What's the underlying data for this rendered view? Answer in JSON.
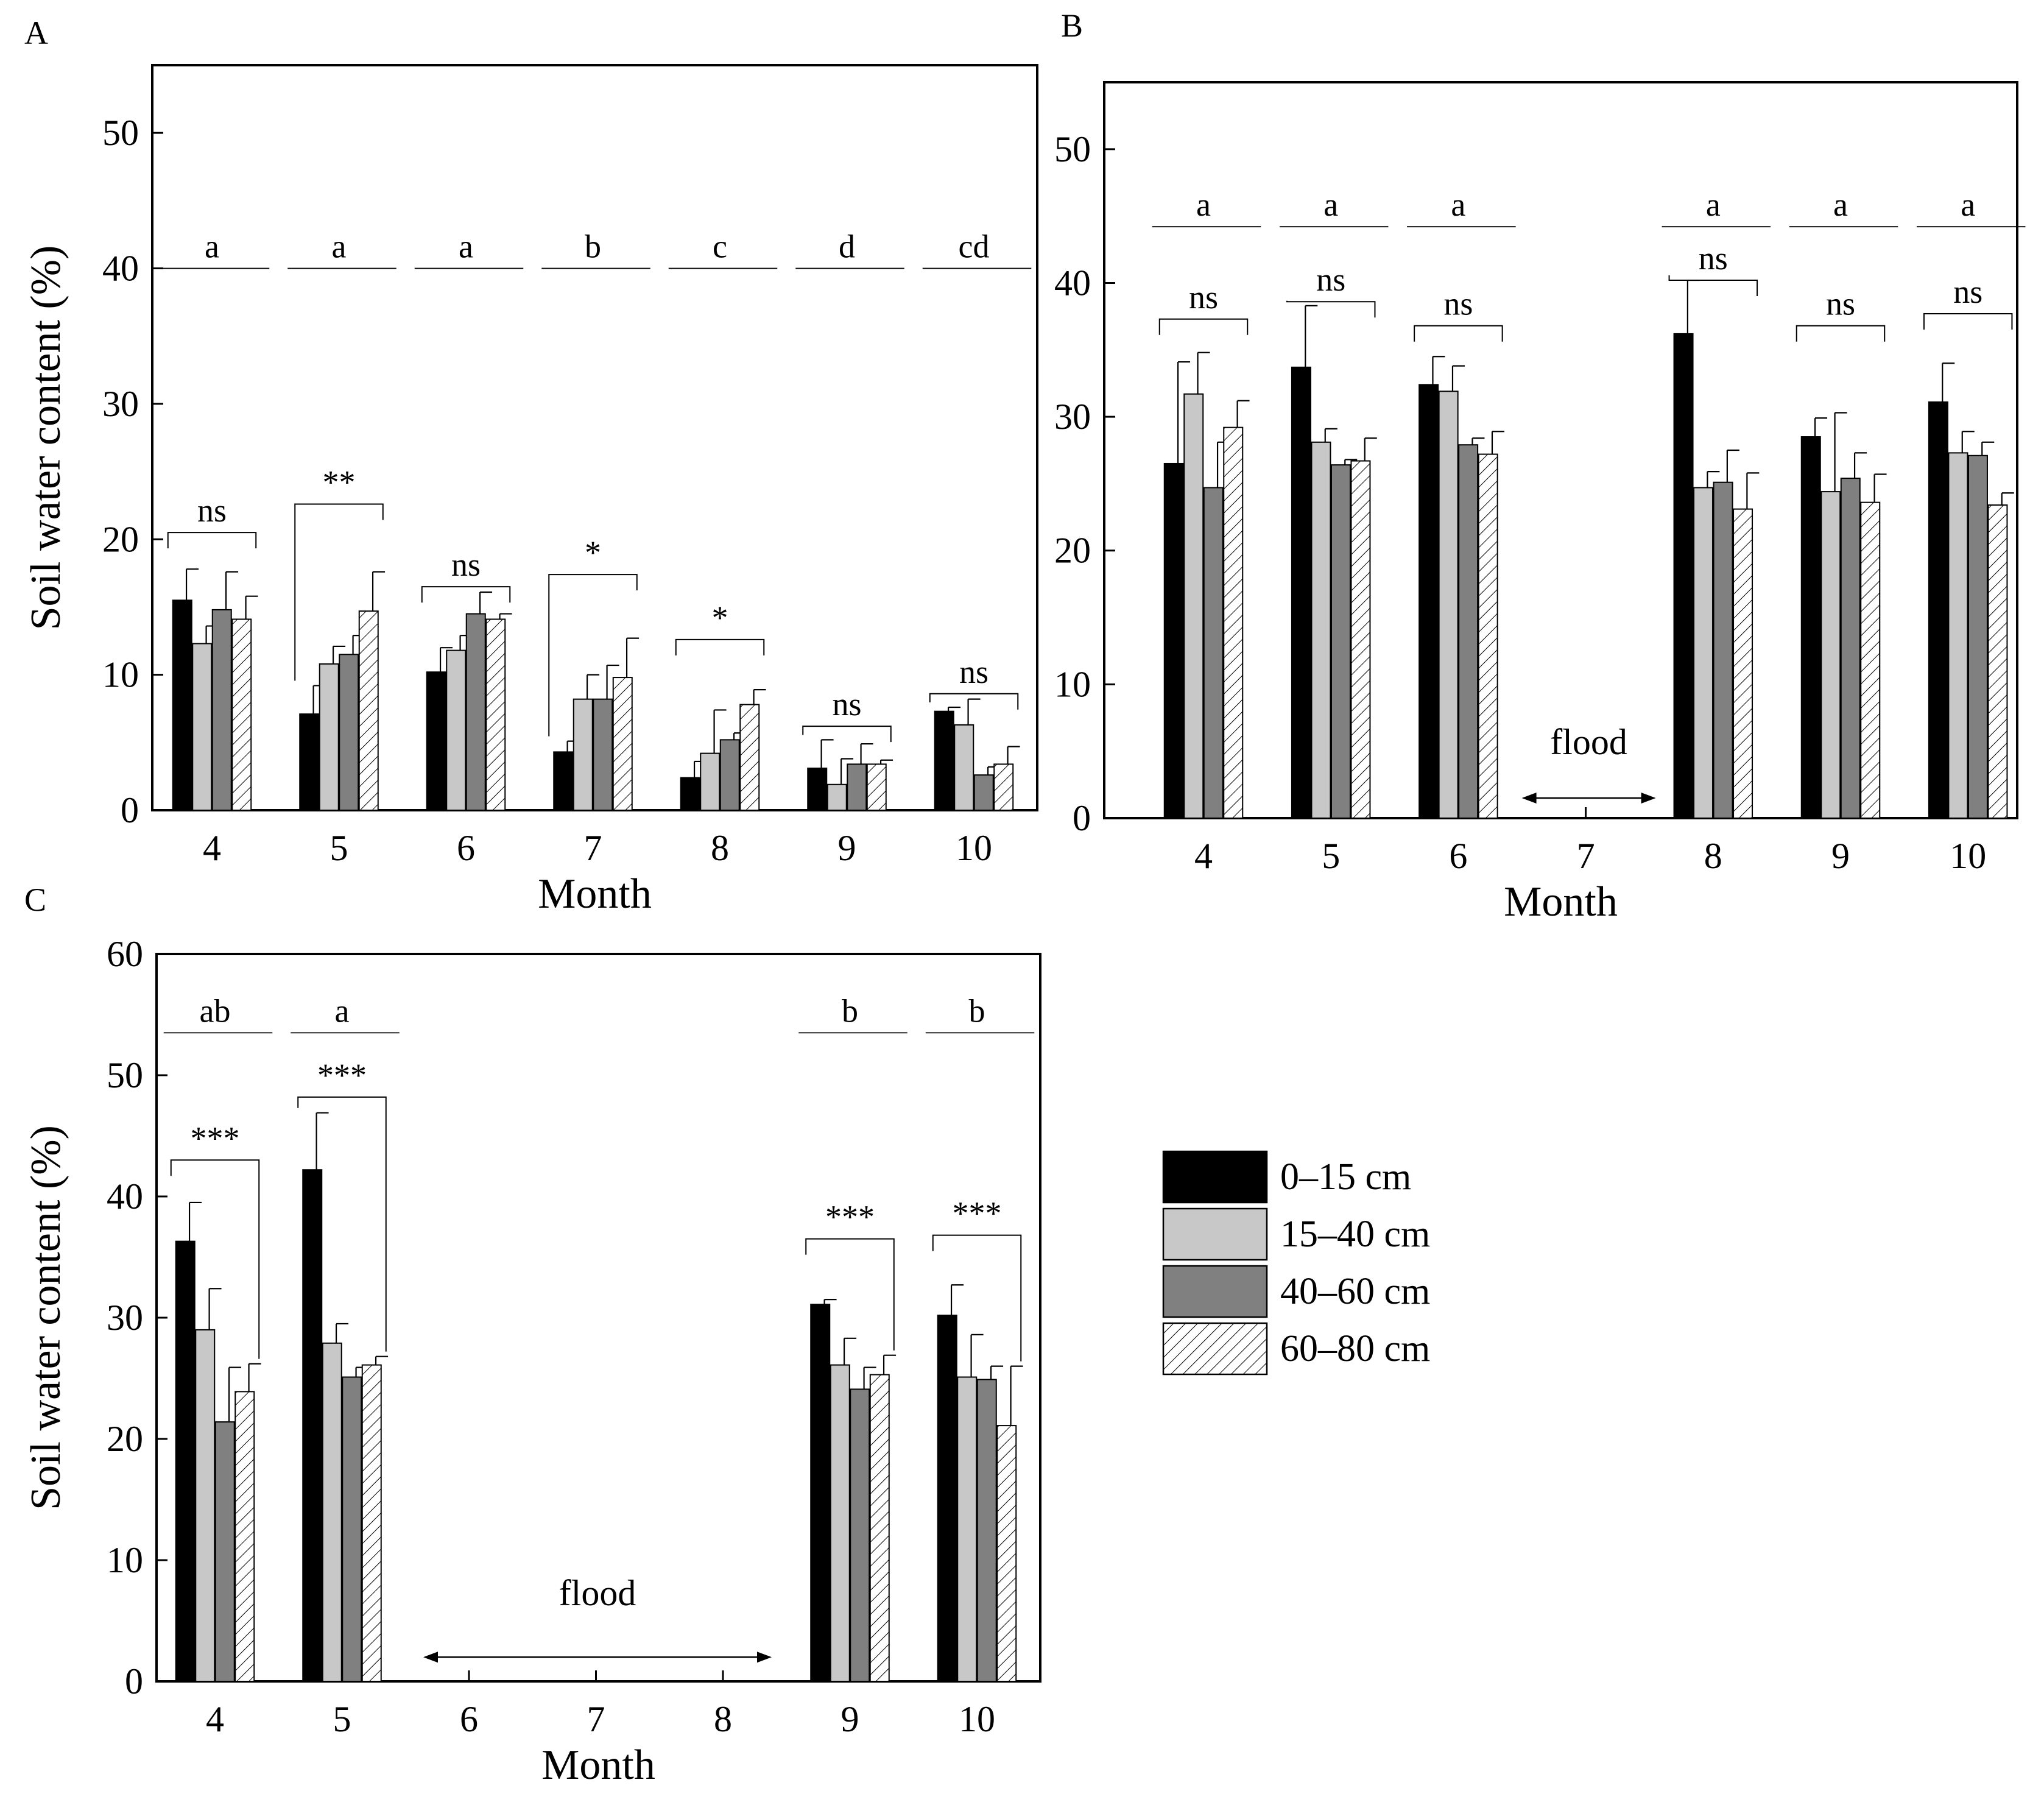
{
  "figure": {
    "legend": {
      "entries": [
        "0–15 cm",
        "15–40 cm",
        "40–60 cm",
        "60–80 cm"
      ],
      "styles": [
        "black",
        "lightgray",
        "darkgray",
        "hatch"
      ]
    },
    "colors": {
      "black": "#000000",
      "lightgray": "#c8c8c8",
      "darkgray": "#808080",
      "hatch": "#ffffff"
    }
  },
  "chart_data": [
    {
      "panel": "A",
      "type": "bar",
      "xlabel": "Month",
      "ylabel": "Soil water content (%)",
      "ylim": [
        0,
        55
      ],
      "yticks": [
        0,
        10,
        20,
        30,
        40,
        50
      ],
      "categories": [
        "4",
        "5",
        "6",
        "7",
        "8",
        "9",
        "10"
      ],
      "series": [
        {
          "name": "0–15 cm",
          "values": [
            15.5,
            7.1,
            10.2,
            4.3,
            2.4,
            3.1,
            7.3
          ],
          "errors": [
            2.3,
            2.1,
            1.8,
            0.8,
            1.2,
            2.1,
            0.3
          ]
        },
        {
          "name": "15–40 cm",
          "values": [
            12.3,
            10.8,
            11.8,
            8.2,
            4.2,
            1.9,
            6.3
          ],
          "errors": [
            1.3,
            1.3,
            1.1,
            1.8,
            3.2,
            1.9,
            1.9
          ]
        },
        {
          "name": "40–60 cm",
          "values": [
            14.8,
            11.5,
            14.5,
            8.2,
            5.2,
            3.4,
            2.6
          ],
          "errors": [
            2.8,
            1.4,
            1.6,
            2.5,
            0.5,
            1.5,
            0.6
          ]
        },
        {
          "name": "60–80 cm",
          "values": [
            14.1,
            14.7,
            14.1,
            9.8,
            7.8,
            3.4,
            3.4
          ],
          "errors": [
            1.7,
            2.9,
            0.4,
            2.9,
            1.1,
            0.3,
            1.3
          ]
        }
      ],
      "group_letters": [
        "a",
        "a",
        "a",
        "b",
        "c",
        "d",
        "cd"
      ],
      "significance": [
        "ns",
        "**",
        "ns",
        "*",
        "*",
        "ns",
        "ns"
      ],
      "flood_months": []
    },
    {
      "panel": "B",
      "type": "bar",
      "xlabel": "Month",
      "ylabel": "",
      "ylim": [
        0,
        55
      ],
      "yticks": [
        0,
        10,
        20,
        30,
        40,
        50
      ],
      "categories": [
        "4",
        "5",
        "6",
        "7",
        "8",
        "9",
        "10"
      ],
      "series": [
        {
          "name": "0–15 cm",
          "values": [
            26.5,
            33.7,
            32.4,
            null,
            36.2,
            28.5,
            31.1
          ],
          "errors": [
            7.6,
            4.6,
            2.1,
            null,
            4.0,
            1.4,
            2.9
          ]
        },
        {
          "name": "15–40 cm",
          "values": [
            31.7,
            28.1,
            31.9,
            null,
            24.7,
            24.4,
            27.3
          ],
          "errors": [
            3.1,
            1.0,
            1.9,
            null,
            1.2,
            5.9,
            1.6
          ]
        },
        {
          "name": "40–60 cm",
          "values": [
            24.7,
            26.4,
            27.9,
            null,
            25.1,
            25.4,
            27.1
          ],
          "errors": [
            3.4,
            0.4,
            0.5,
            null,
            2.4,
            1.9,
            1.0
          ]
        },
        {
          "name": "60–80 cm",
          "values": [
            29.2,
            26.7,
            27.2,
            null,
            23.1,
            23.6,
            23.4
          ],
          "errors": [
            2.0,
            1.7,
            1.7,
            null,
            2.7,
            2.1,
            0.9
          ]
        }
      ],
      "group_letters": [
        "a",
        "a",
        "a",
        "",
        "a",
        "a",
        "a"
      ],
      "significance": [
        "ns",
        "ns",
        "ns",
        "",
        "ns",
        "ns",
        "ns"
      ],
      "flood_label": "flood",
      "flood_months": [
        "7"
      ]
    },
    {
      "panel": "C",
      "type": "bar",
      "xlabel": "Month",
      "ylabel": "Soil water content (%)",
      "ylim": [
        0,
        60
      ],
      "yticks": [
        0,
        10,
        20,
        30,
        40,
        50,
        60
      ],
      "categories": [
        "4",
        "5",
        "6",
        "7",
        "8",
        "9",
        "10"
      ],
      "series": [
        {
          "name": "0–15 cm",
          "values": [
            36.3,
            42.2,
            null,
            null,
            null,
            31.1,
            30.2
          ],
          "errors": [
            3.2,
            4.7,
            null,
            null,
            null,
            0.4,
            2.5
          ]
        },
        {
          "name": "15–40 cm",
          "values": [
            29.0,
            27.9,
            null,
            null,
            null,
            26.1,
            25.1
          ],
          "errors": [
            3.4,
            1.6,
            null,
            null,
            null,
            2.2,
            3.5
          ]
        },
        {
          "name": "40–60 cm",
          "values": [
            21.4,
            25.1,
            null,
            null,
            null,
            24.1,
            24.9
          ],
          "errors": [
            4.5,
            0.8,
            null,
            null,
            null,
            1.8,
            1.1
          ]
        },
        {
          "name": "60–80 cm",
          "values": [
            23.9,
            26.1,
            null,
            null,
            null,
            25.3,
            21.1
          ],
          "errors": [
            2.3,
            0.7,
            null,
            null,
            null,
            1.6,
            4.9
          ]
        }
      ],
      "group_letters": [
        "ab",
        "a",
        "",
        "",
        "",
        "b",
        "b"
      ],
      "significance": [
        "***",
        "***",
        "",
        "",
        "",
        "***",
        "***"
      ],
      "flood_label": "flood",
      "flood_months": [
        "6",
        "7",
        "8"
      ]
    }
  ]
}
